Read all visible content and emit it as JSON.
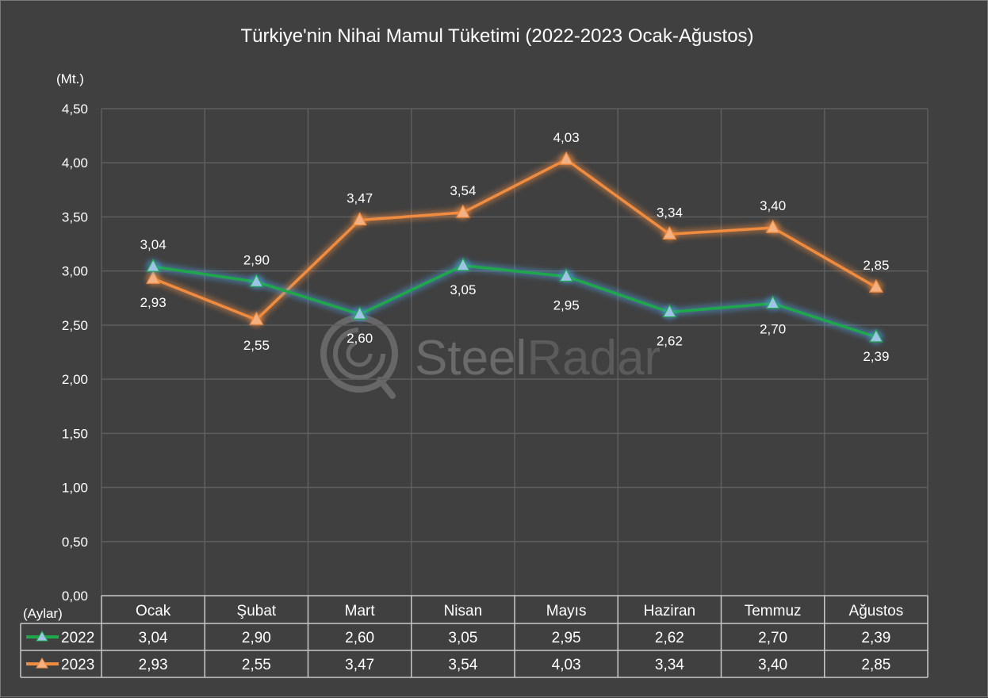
{
  "chart_data": {
    "type": "line",
    "title": "Türkiye'nin Nihai Mamul Tüketimi (2022-2023 Ocak-Ağustos)",
    "ylabel": "(Mt.)",
    "xlabel": "(Aylar)",
    "ylim": [
      0,
      4.5
    ],
    "yticks": [
      0,
      0.5,
      1.0,
      1.5,
      2.0,
      2.5,
      3.0,
      3.5,
      4.0,
      4.5
    ],
    "ytick_labels": [
      "0,00",
      "0,50",
      "1,00",
      "1,50",
      "2,00",
      "2,50",
      "3,00",
      "3,50",
      "4,00",
      "4,50"
    ],
    "categories": [
      "Ocak",
      "Şubat",
      "Mart",
      "Nisan",
      "Mayıs",
      "Haziran",
      "Temmuz",
      "Ağustos"
    ],
    "grid": true,
    "legend": "data-table",
    "series": [
      {
        "name": "2022",
        "color": "#1ea84a",
        "marker_color": "#9dc3e6",
        "values": [
          3.04,
          2.9,
          2.6,
          3.05,
          2.95,
          2.62,
          2.7,
          2.39
        ],
        "labels": [
          "3,04",
          "2,90",
          "2,60",
          "3,05",
          "2,95",
          "2,62",
          "2,70",
          "2,39"
        ]
      },
      {
        "name": "2023",
        "color": "#f08c3f",
        "marker_color": "#f4b183",
        "values": [
          2.93,
          2.55,
          3.47,
          3.54,
          4.03,
          3.34,
          3.4,
          2.85
        ],
        "labels": [
          "2,93",
          "2,55",
          "3,47",
          "3,54",
          "4,03",
          "3,34",
          "3,40",
          "2,85"
        ]
      }
    ]
  },
  "watermark": {
    "text_a": "Steel",
    "text_b": "Radar"
  }
}
